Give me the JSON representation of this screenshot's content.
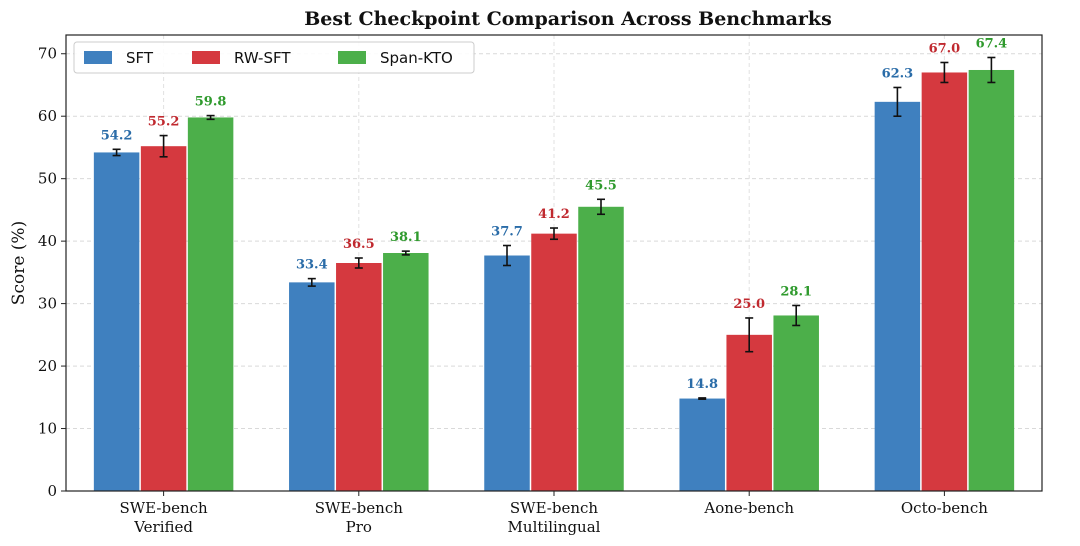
{
  "chart_data": {
    "type": "bar",
    "title": "Best Checkpoint Comparison Across Benchmarks",
    "ylabel": "Score (%)",
    "xlabel": "",
    "ylim": [
      0,
      73
    ],
    "yticks": [
      0,
      10,
      20,
      30,
      40,
      50,
      60,
      70
    ],
    "grid": true,
    "legend_placement": "top-left",
    "categories": [
      [
        "SWE-bench",
        "Verified"
      ],
      [
        "SWE-bench",
        "Pro"
      ],
      [
        "SWE-bench",
        "Multilingual"
      ],
      [
        "Aone-bench"
      ],
      [
        "Octo-bench"
      ]
    ],
    "series": [
      {
        "name": "SFT",
        "color": "#3f80bf",
        "label_color": "#2a6ca8",
        "values": [
          54.2,
          33.4,
          37.7,
          14.8,
          62.3
        ],
        "errors": [
          0.5,
          0.6,
          1.6,
          0.1,
          2.3
        ]
      },
      {
        "name": "RW-SFT",
        "color": "#d5393f",
        "label_color": "#c0292f",
        "values": [
          55.2,
          36.5,
          41.2,
          25.0,
          67.0
        ],
        "errors": [
          1.7,
          0.8,
          0.9,
          2.7,
          1.6
        ]
      },
      {
        "name": "Span-KTO",
        "color": "#4caf4a",
        "label_color": "#2f9a2d",
        "values": [
          59.8,
          38.1,
          45.5,
          28.1,
          67.4
        ],
        "errors": [
          0.3,
          0.3,
          1.2,
          1.6,
          2.0
        ]
      }
    ]
  }
}
